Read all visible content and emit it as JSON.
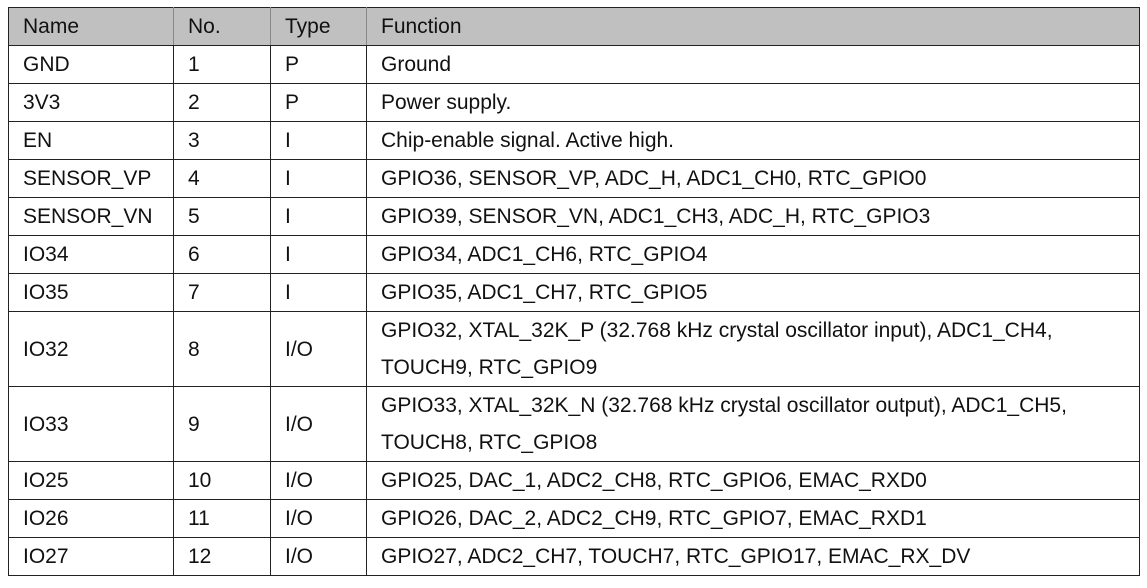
{
  "table": {
    "headers": [
      "Name",
      "No.",
      "Type",
      "Function"
    ],
    "rows": [
      [
        "GND",
        "1",
        "P",
        "Ground"
      ],
      [
        "3V3",
        "2",
        "P",
        "Power supply."
      ],
      [
        "EN",
        "3",
        "I",
        "Chip-enable signal.  Active high."
      ],
      [
        "SENSOR_VP",
        "4",
        "I",
        "GPIO36, SENSOR_VP, ADC_H, ADC1_CH0, RTC_GPIO0"
      ],
      [
        "SENSOR_VN",
        "5",
        "I",
        "GPIO39, SENSOR_VN, ADC1_CH3, ADC_H, RTC_GPIO3"
      ],
      [
        "IO34",
        "6",
        "I",
        "GPIO34, ADC1_CH6, RTC_GPIO4"
      ],
      [
        "IO35",
        "7",
        "I",
        "GPIO35, ADC1_CH7, RTC_GPIO5"
      ],
      [
        "IO32",
        "8",
        "I/O",
        "GPIO32, XTAL_32K_P (32.768 kHz crystal oscillator input), ADC1_CH4, TOUCH9, RTC_GPIO9"
      ],
      [
        "IO33",
        "9",
        "I/O",
        "GPIO33, XTAL_32K_N (32.768 kHz crystal oscillator output), ADC1_CH5, TOUCH8, RTC_GPIO8"
      ],
      [
        "IO25",
        "10",
        "I/O",
        "GPIO25, DAC_1, ADC2_CH8, RTC_GPIO6, EMAC_RXD0"
      ],
      [
        "IO26",
        "11",
        "I/O",
        "GPIO26, DAC_2, ADC2_CH9, RTC_GPIO7, EMAC_RXD1"
      ],
      [
        "IO27",
        "12",
        "I/O",
        "GPIO27, ADC2_CH7, TOUCH7, RTC_GPIO17, EMAC_RX_DV"
      ]
    ]
  }
}
